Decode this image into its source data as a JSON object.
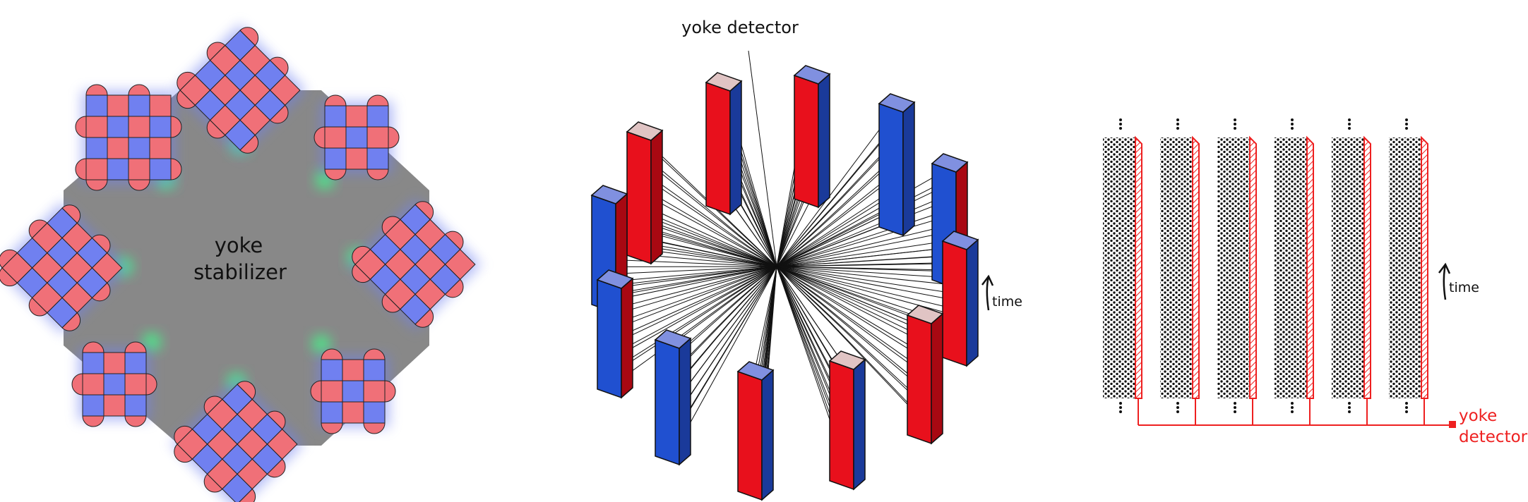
{
  "panel_a": {
    "label_line1": "yoke",
    "label_line2": "stabilizer",
    "colors": {
      "red": "#f07078",
      "blue": "#7080f0",
      "gray": "#888888",
      "green": "#4ee888"
    }
  },
  "panel_b": {
    "title": "yoke detector",
    "time_label": "time",
    "colors": {
      "red": "#e8101c",
      "red_dark": "#a80812",
      "blue": "#2050d0",
      "blue_dark": "#1a3a9a",
      "cap_red": "#e0c4c4",
      "cap_blue": "#8090e0"
    }
  },
  "panel_c": {
    "time_label": "time",
    "detector_label_line1": "yoke",
    "detector_label_line2": "detector",
    "column_count": 6,
    "colors": {
      "wire": "#ee2020",
      "dots": "#111111"
    }
  }
}
